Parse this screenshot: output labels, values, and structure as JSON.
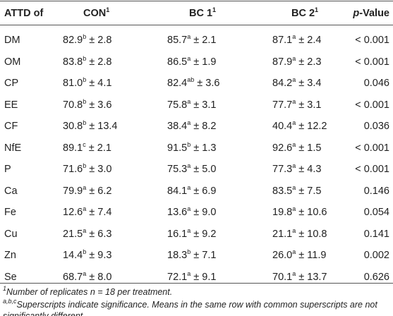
{
  "table": {
    "header": [
      {
        "text": "ATTD of"
      },
      {
        "text": "CON",
        "sup": "1"
      },
      {
        "text": "BC 1",
        "sup": "1"
      },
      {
        "text": "BC 2",
        "sup": "1"
      },
      {
        "italic": "p",
        "text": "-Value"
      }
    ],
    "rows": [
      {
        "label": "DM",
        "cells": [
          {
            "mean": "82.9",
            "sup": "b",
            "sd": "± 2.8"
          },
          {
            "mean": "85.7",
            "sup": "a",
            "sd": "± 2.1"
          },
          {
            "mean": "87.1",
            "sup": "a",
            "sd": "± 2.4"
          }
        ],
        "p": "< 0.001"
      },
      {
        "label": "OM",
        "cells": [
          {
            "mean": "83.8",
            "sup": "b",
            "sd": "± 2.8"
          },
          {
            "mean": "86.5",
            "sup": "a",
            "sd": "± 1.9"
          },
          {
            "mean": "87.9",
            "sup": "a",
            "sd": "± 2.3"
          }
        ],
        "p": "< 0.001"
      },
      {
        "label": "CP",
        "cells": [
          {
            "mean": "81.0",
            "sup": "b",
            "sd": "± 4.1"
          },
          {
            "mean": "82.4",
            "sup": "ab",
            "sd": "± 3.6"
          },
          {
            "mean": "84.2",
            "sup": "a",
            "sd": "± 3.4"
          }
        ],
        "p": "0.046"
      },
      {
        "label": "EE",
        "cells": [
          {
            "mean": "70.8",
            "sup": "b",
            "sd": "± 3.6"
          },
          {
            "mean": "75.8",
            "sup": "a",
            "sd": "± 3.1"
          },
          {
            "mean": "77.7",
            "sup": "a",
            "sd": "± 3.1"
          }
        ],
        "p": "< 0.001"
      },
      {
        "label": "CF",
        "cells": [
          {
            "mean": "30.8",
            "sup": "b",
            "sd": "± 13.4"
          },
          {
            "mean": "38.4",
            "sup": "a",
            "sd": "± 8.2"
          },
          {
            "mean": "40.4",
            "sup": "a",
            "sd": "± 12.2"
          }
        ],
        "p": "0.036"
      },
      {
        "label": "NfE",
        "cells": [
          {
            "mean": "89.1",
            "sup": "c",
            "sd": "± 2.1"
          },
          {
            "mean": "91.5",
            "sup": "b",
            "sd": "± 1.3"
          },
          {
            "mean": "92.6",
            "sup": "a",
            "sd": "± 1.5"
          }
        ],
        "p": "< 0.001"
      },
      {
        "label": "P",
        "cells": [
          {
            "mean": "71.6",
            "sup": "b",
            "sd": "± 3.0"
          },
          {
            "mean": "75.3",
            "sup": "a",
            "sd": "± 5.0"
          },
          {
            "mean": "77.3",
            "sup": "a",
            "sd": "± 4.3"
          }
        ],
        "p": "< 0.001"
      },
      {
        "label": "Ca",
        "cells": [
          {
            "mean": "79.9",
            "sup": "a",
            "sd": "± 6.2"
          },
          {
            "mean": "84.1",
            "sup": "a",
            "sd": "± 6.9"
          },
          {
            "mean": "83.5",
            "sup": "a",
            "sd": "± 7.5"
          }
        ],
        "p": "0.146"
      },
      {
        "label": "Fe",
        "cells": [
          {
            "mean": "12.6",
            "sup": "a",
            "sd": "± 7.4"
          },
          {
            "mean": "13.6",
            "sup": "a",
            "sd": "± 9.0"
          },
          {
            "mean": "19.8",
            "sup": "a",
            "sd": "± 10.6"
          }
        ],
        "p": "0.054"
      },
      {
        "label": "Cu",
        "cells": [
          {
            "mean": "21.5",
            "sup": "a",
            "sd": "± 6.3"
          },
          {
            "mean": "16.1",
            "sup": "a",
            "sd": "± 9.2"
          },
          {
            "mean": "21.1",
            "sup": "a",
            "sd": "± 10.8"
          }
        ],
        "p": "0.141"
      },
      {
        "label": "Zn",
        "cells": [
          {
            "mean": "14.4",
            "sup": "b",
            "sd": "± 9.3"
          },
          {
            "mean": "18.3",
            "sup": "b",
            "sd": "± 7.1"
          },
          {
            "mean": "26.0",
            "sup": "a",
            "sd": "± 11.9"
          }
        ],
        "p": "0.002"
      },
      {
        "label": "Se",
        "cells": [
          {
            "mean": "68.7",
            "sup": "a",
            "sd": "± 8.0"
          },
          {
            "mean": "72.1",
            "sup": "a",
            "sd": "± 9.1"
          },
          {
            "mean": "70.1",
            "sup": "a",
            "sd": "± 13.7"
          }
        ],
        "p": "0.626"
      }
    ],
    "footnotes": [
      {
        "sup": "1",
        "text": "Number of replicates n = 18 per treatment."
      },
      {
        "sup": "a,b,c",
        "text": "Superscripts indicate significance. Means in the same row with common superscripts are not significantly different."
      }
    ]
  }
}
